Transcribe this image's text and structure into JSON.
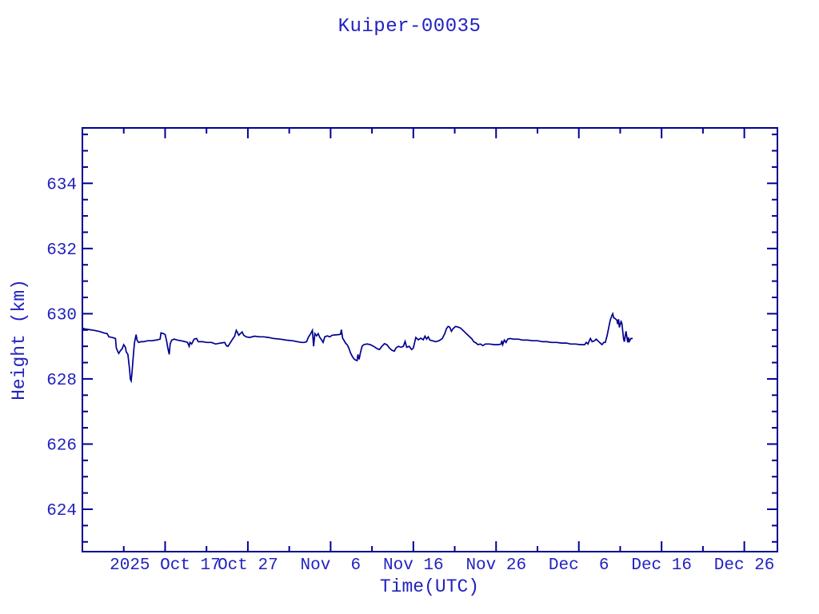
{
  "chart_data": {
    "type": "line",
    "title": "Kuiper-00035",
    "xlabel": "Time(UTC)",
    "ylabel": "Height (km)",
    "grid": false,
    "legend": "none",
    "colors": {
      "background": "#ffffff",
      "frame": "#000090",
      "line": "#000090",
      "text": "#2222c0"
    },
    "x_axis": {
      "unit": "day offset along axis (major ticks every 10 days)",
      "range_days": [
        0,
        84
      ],
      "major_ticks": [
        {
          "day": 10,
          "label": "2025 Oct 17"
        },
        {
          "day": 20,
          "label": "Oct 27"
        },
        {
          "day": 30,
          "label": "Nov  6"
        },
        {
          "day": 40,
          "label": "Nov 16"
        },
        {
          "day": 50,
          "label": "Nov 26"
        },
        {
          "day": 60,
          "label": "Dec  6"
        },
        {
          "day": 70,
          "label": "Dec 16"
        },
        {
          "day": 80,
          "label": "Dec 26"
        }
      ],
      "minor_tick_days": [
        5,
        15,
        25,
        35,
        45,
        55,
        65,
        75
      ]
    },
    "y_axis": {
      "range": [
        622.7,
        635.7
      ],
      "major_ticks": [
        624,
        626,
        628,
        630,
        632,
        634
      ],
      "minor_step": 0.5
    },
    "series": [
      {
        "name": "height",
        "points_day_km": [
          [
            0.0,
            629.56
          ],
          [
            0.3,
            629.53
          ],
          [
            0.9,
            629.51
          ],
          [
            1.4,
            629.49
          ],
          [
            2.0,
            629.46
          ],
          [
            2.6,
            629.41
          ],
          [
            3.0,
            629.39
          ],
          [
            3.2,
            629.29
          ],
          [
            3.6,
            629.27
          ],
          [
            4.0,
            629.24
          ],
          [
            4.1,
            628.95
          ],
          [
            4.3,
            628.83
          ],
          [
            4.4,
            628.78
          ],
          [
            4.6,
            628.87
          ],
          [
            4.8,
            628.92
          ],
          [
            5.0,
            629.05
          ],
          [
            5.2,
            628.97
          ],
          [
            5.3,
            628.83
          ],
          [
            5.5,
            628.75
          ],
          [
            5.6,
            628.53
          ],
          [
            5.7,
            628.29
          ],
          [
            5.8,
            627.99
          ],
          [
            5.9,
            627.94
          ],
          [
            6.0,
            628.21
          ],
          [
            6.1,
            628.53
          ],
          [
            6.2,
            628.83
          ],
          [
            6.3,
            629.12
          ],
          [
            6.4,
            629.24
          ],
          [
            6.5,
            629.36
          ],
          [
            6.6,
            629.19
          ],
          [
            6.8,
            629.12
          ],
          [
            7.1,
            629.14
          ],
          [
            7.4,
            629.14
          ],
          [
            7.9,
            629.17
          ],
          [
            8.4,
            629.17
          ],
          [
            8.9,
            629.19
          ],
          [
            9.4,
            629.22
          ],
          [
            9.5,
            629.41
          ],
          [
            9.8,
            629.39
          ],
          [
            10.0,
            629.36
          ],
          [
            10.2,
            629.14
          ],
          [
            10.3,
            628.97
          ],
          [
            10.5,
            628.75
          ],
          [
            10.6,
            629.07
          ],
          [
            10.8,
            629.19
          ],
          [
            11.1,
            629.22
          ],
          [
            11.5,
            629.19
          ],
          [
            11.9,
            629.17
          ],
          [
            12.3,
            629.15
          ],
          [
            12.7,
            629.12
          ],
          [
            12.9,
            629.0
          ],
          [
            13.0,
            629.12
          ],
          [
            13.2,
            629.07
          ],
          [
            13.5,
            629.22
          ],
          [
            13.8,
            629.24
          ],
          [
            14.0,
            629.14
          ],
          [
            14.5,
            629.14
          ],
          [
            15.0,
            629.12
          ],
          [
            15.6,
            629.12
          ],
          [
            16.1,
            629.07
          ],
          [
            16.7,
            629.1
          ],
          [
            17.2,
            629.12
          ],
          [
            17.4,
            629.02
          ],
          [
            17.6,
            629.0
          ],
          [
            17.9,
            629.12
          ],
          [
            18.2,
            629.24
          ],
          [
            18.4,
            629.31
          ],
          [
            18.6,
            629.49
          ],
          [
            18.7,
            629.44
          ],
          [
            18.9,
            629.34
          ],
          [
            19.1,
            629.39
          ],
          [
            19.3,
            629.44
          ],
          [
            19.5,
            629.34
          ],
          [
            19.8,
            629.29
          ],
          [
            20.2,
            629.27
          ],
          [
            20.8,
            629.31
          ],
          [
            21.4,
            629.29
          ],
          [
            21.9,
            629.29
          ],
          [
            22.5,
            629.27
          ],
          [
            23.1,
            629.24
          ],
          [
            23.9,
            629.22
          ],
          [
            24.6,
            629.19
          ],
          [
            25.4,
            629.17
          ],
          [
            26.0,
            629.14
          ],
          [
            26.5,
            629.12
          ],
          [
            26.8,
            629.12
          ],
          [
            27.1,
            629.14
          ],
          [
            27.3,
            629.27
          ],
          [
            27.6,
            629.39
          ],
          [
            27.8,
            629.49
          ],
          [
            27.95,
            629.0
          ],
          [
            28.1,
            629.39
          ],
          [
            28.3,
            629.32
          ],
          [
            28.5,
            629.39
          ],
          [
            28.7,
            629.27
          ],
          [
            28.9,
            629.2
          ],
          [
            29.1,
            629.12
          ],
          [
            29.3,
            629.29
          ],
          [
            29.6,
            629.32
          ],
          [
            29.9,
            629.29
          ],
          [
            30.2,
            629.34
          ],
          [
            30.6,
            629.35
          ],
          [
            31.0,
            629.36
          ],
          [
            31.2,
            629.37
          ],
          [
            31.3,
            629.51
          ],
          [
            31.45,
            629.25
          ],
          [
            31.6,
            629.19
          ],
          [
            31.8,
            629.1
          ],
          [
            32.0,
            629.05
          ],
          [
            32.2,
            628.95
          ],
          [
            32.4,
            628.8
          ],
          [
            32.6,
            628.7
          ],
          [
            32.8,
            628.62
          ],
          [
            33.0,
            628.58
          ],
          [
            33.2,
            628.56
          ],
          [
            33.3,
            628.75
          ],
          [
            33.45,
            628.6
          ],
          [
            33.6,
            628.8
          ],
          [
            33.8,
            629.0
          ],
          [
            34.0,
            629.05
          ],
          [
            34.4,
            629.07
          ],
          [
            34.8,
            629.05
          ],
          [
            35.2,
            629.0
          ],
          [
            35.6,
            628.93
          ],
          [
            35.9,
            628.9
          ],
          [
            36.2,
            629.0
          ],
          [
            36.5,
            629.08
          ],
          [
            36.8,
            629.05
          ],
          [
            37.1,
            628.95
          ],
          [
            37.4,
            628.88
          ],
          [
            37.7,
            628.85
          ],
          [
            37.9,
            628.95
          ],
          [
            38.2,
            629.0
          ],
          [
            38.5,
            628.97
          ],
          [
            38.8,
            629.0
          ],
          [
            39.0,
            629.15
          ],
          [
            39.2,
            628.97
          ],
          [
            39.5,
            629.0
          ],
          [
            39.8,
            628.9
          ],
          [
            40.0,
            628.95
          ],
          [
            40.3,
            629.27
          ],
          [
            40.6,
            629.2
          ],
          [
            40.9,
            629.25
          ],
          [
            41.2,
            629.2
          ],
          [
            41.4,
            629.31
          ],
          [
            41.6,
            629.22
          ],
          [
            41.8,
            629.29
          ],
          [
            42.0,
            629.19
          ],
          [
            42.3,
            629.17
          ],
          [
            42.7,
            629.14
          ],
          [
            43.1,
            629.17
          ],
          [
            43.5,
            629.24
          ],
          [
            43.8,
            629.39
          ],
          [
            44.0,
            629.54
          ],
          [
            44.2,
            629.61
          ],
          [
            44.4,
            629.59
          ],
          [
            44.6,
            629.46
          ],
          [
            44.8,
            629.54
          ],
          [
            45.1,
            629.61
          ],
          [
            45.4,
            629.59
          ],
          [
            45.7,
            629.56
          ],
          [
            46.0,
            629.49
          ],
          [
            46.4,
            629.39
          ],
          [
            46.8,
            629.29
          ],
          [
            47.1,
            629.22
          ],
          [
            47.3,
            629.14
          ],
          [
            47.6,
            629.1
          ],
          [
            47.8,
            629.05
          ],
          [
            48.1,
            629.07
          ],
          [
            48.4,
            629.02
          ],
          [
            48.7,
            629.07
          ],
          [
            49.2,
            629.07
          ],
          [
            49.8,
            629.05
          ],
          [
            50.3,
            629.05
          ],
          [
            50.6,
            629.07
          ],
          [
            50.7,
            629.17
          ],
          [
            50.8,
            629.05
          ],
          [
            51.0,
            629.19
          ],
          [
            51.2,
            629.12
          ],
          [
            51.4,
            629.22
          ],
          [
            51.7,
            629.24
          ],
          [
            52.1,
            629.22
          ],
          [
            52.7,
            629.22
          ],
          [
            53.2,
            629.19
          ],
          [
            53.8,
            629.19
          ],
          [
            54.4,
            629.17
          ],
          [
            55.0,
            629.17
          ],
          [
            55.6,
            629.14
          ],
          [
            56.1,
            629.14
          ],
          [
            56.7,
            629.12
          ],
          [
            57.3,
            629.12
          ],
          [
            57.9,
            629.1
          ],
          [
            58.5,
            629.1
          ],
          [
            59.0,
            629.07
          ],
          [
            59.6,
            629.07
          ],
          [
            60.2,
            629.05
          ],
          [
            60.7,
            629.05
          ],
          [
            60.9,
            629.12
          ],
          [
            61.1,
            629.07
          ],
          [
            61.3,
            629.19
          ],
          [
            61.4,
            629.24
          ],
          [
            61.6,
            629.14
          ],
          [
            61.9,
            629.17
          ],
          [
            62.1,
            629.22
          ],
          [
            62.3,
            629.17
          ],
          [
            62.5,
            629.12
          ],
          [
            62.8,
            629.05
          ],
          [
            63.0,
            629.12
          ],
          [
            63.2,
            629.12
          ],
          [
            63.4,
            629.31
          ],
          [
            63.6,
            629.56
          ],
          [
            63.8,
            629.8
          ],
          [
            64.0,
            629.95
          ],
          [
            64.1,
            630.0
          ],
          [
            64.2,
            629.88
          ],
          [
            64.4,
            629.85
          ],
          [
            64.6,
            629.8
          ],
          [
            64.7,
            629.68
          ],
          [
            64.8,
            629.83
          ],
          [
            64.9,
            629.58
          ],
          [
            65.1,
            629.76
          ],
          [
            65.2,
            629.71
          ],
          [
            65.3,
            629.49
          ],
          [
            65.4,
            629.24
          ],
          [
            65.5,
            629.14
          ],
          [
            65.7,
            629.46
          ],
          [
            65.9,
            629.12
          ],
          [
            66.0,
            629.27
          ],
          [
            66.1,
            629.15
          ],
          [
            66.3,
            629.24
          ],
          [
            66.5,
            629.24
          ]
        ]
      }
    ]
  }
}
